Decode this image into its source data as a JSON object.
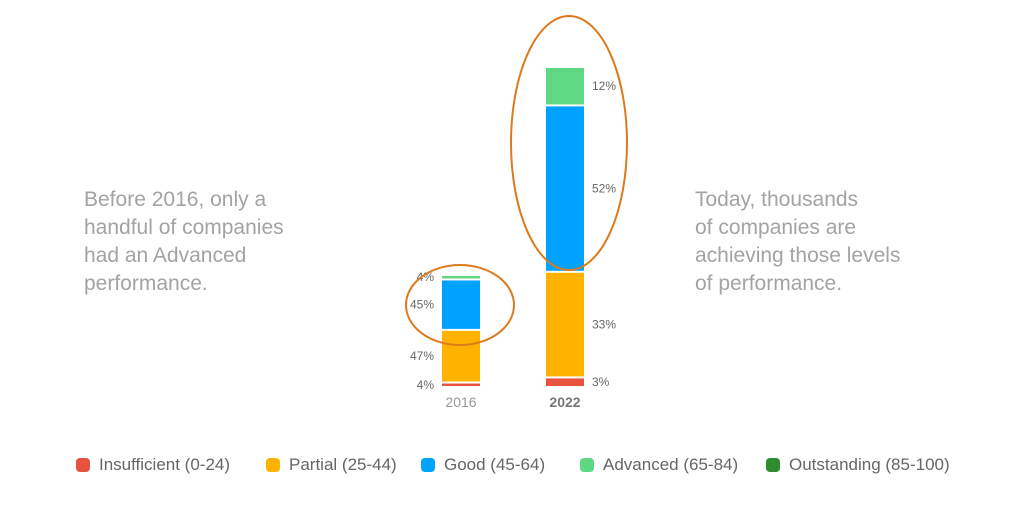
{
  "notes": {
    "left": [
      "Before 2016, only a",
      "handful of companies",
      "had an Advanced",
      "performance."
    ],
    "right": [
      "Today, thousands",
      "of companies are",
      "achieving those levels",
      "of performance."
    ]
  },
  "chart_data": {
    "type": "bar",
    "stacked": true,
    "categories": [
      "2016",
      "2022"
    ],
    "series": [
      {
        "name": "Insufficient (0-24)",
        "color": "#e8533f",
        "values": [
          4,
          3
        ],
        "labels": [
          "4%",
          "3%"
        ]
      },
      {
        "name": "Partial (25-44)",
        "color": "#ffb300",
        "values": [
          47,
          33
        ],
        "labels": [
          "47%",
          "33%"
        ]
      },
      {
        "name": "Good (45-64)",
        "color": "#00a2ff",
        "values": [
          45,
          52
        ],
        "labels": [
          "45%",
          "52%"
        ]
      },
      {
        "name": "Advanced (65-84)",
        "color": "#5ed882",
        "values": [
          4,
          12
        ],
        "labels": [
          "4%",
          "12%"
        ]
      },
      {
        "name": "Outstanding (85-100)",
        "color": "#2e8b2e",
        "values": [
          0,
          0
        ],
        "labels": [
          "",
          ""
        ]
      }
    ],
    "bar_totals_relative": [
      0.35,
      1.0
    ],
    "label_side": [
      "left",
      "right"
    ],
    "highlight_color": "#dd7a1c",
    "legend_position": "bottom"
  }
}
